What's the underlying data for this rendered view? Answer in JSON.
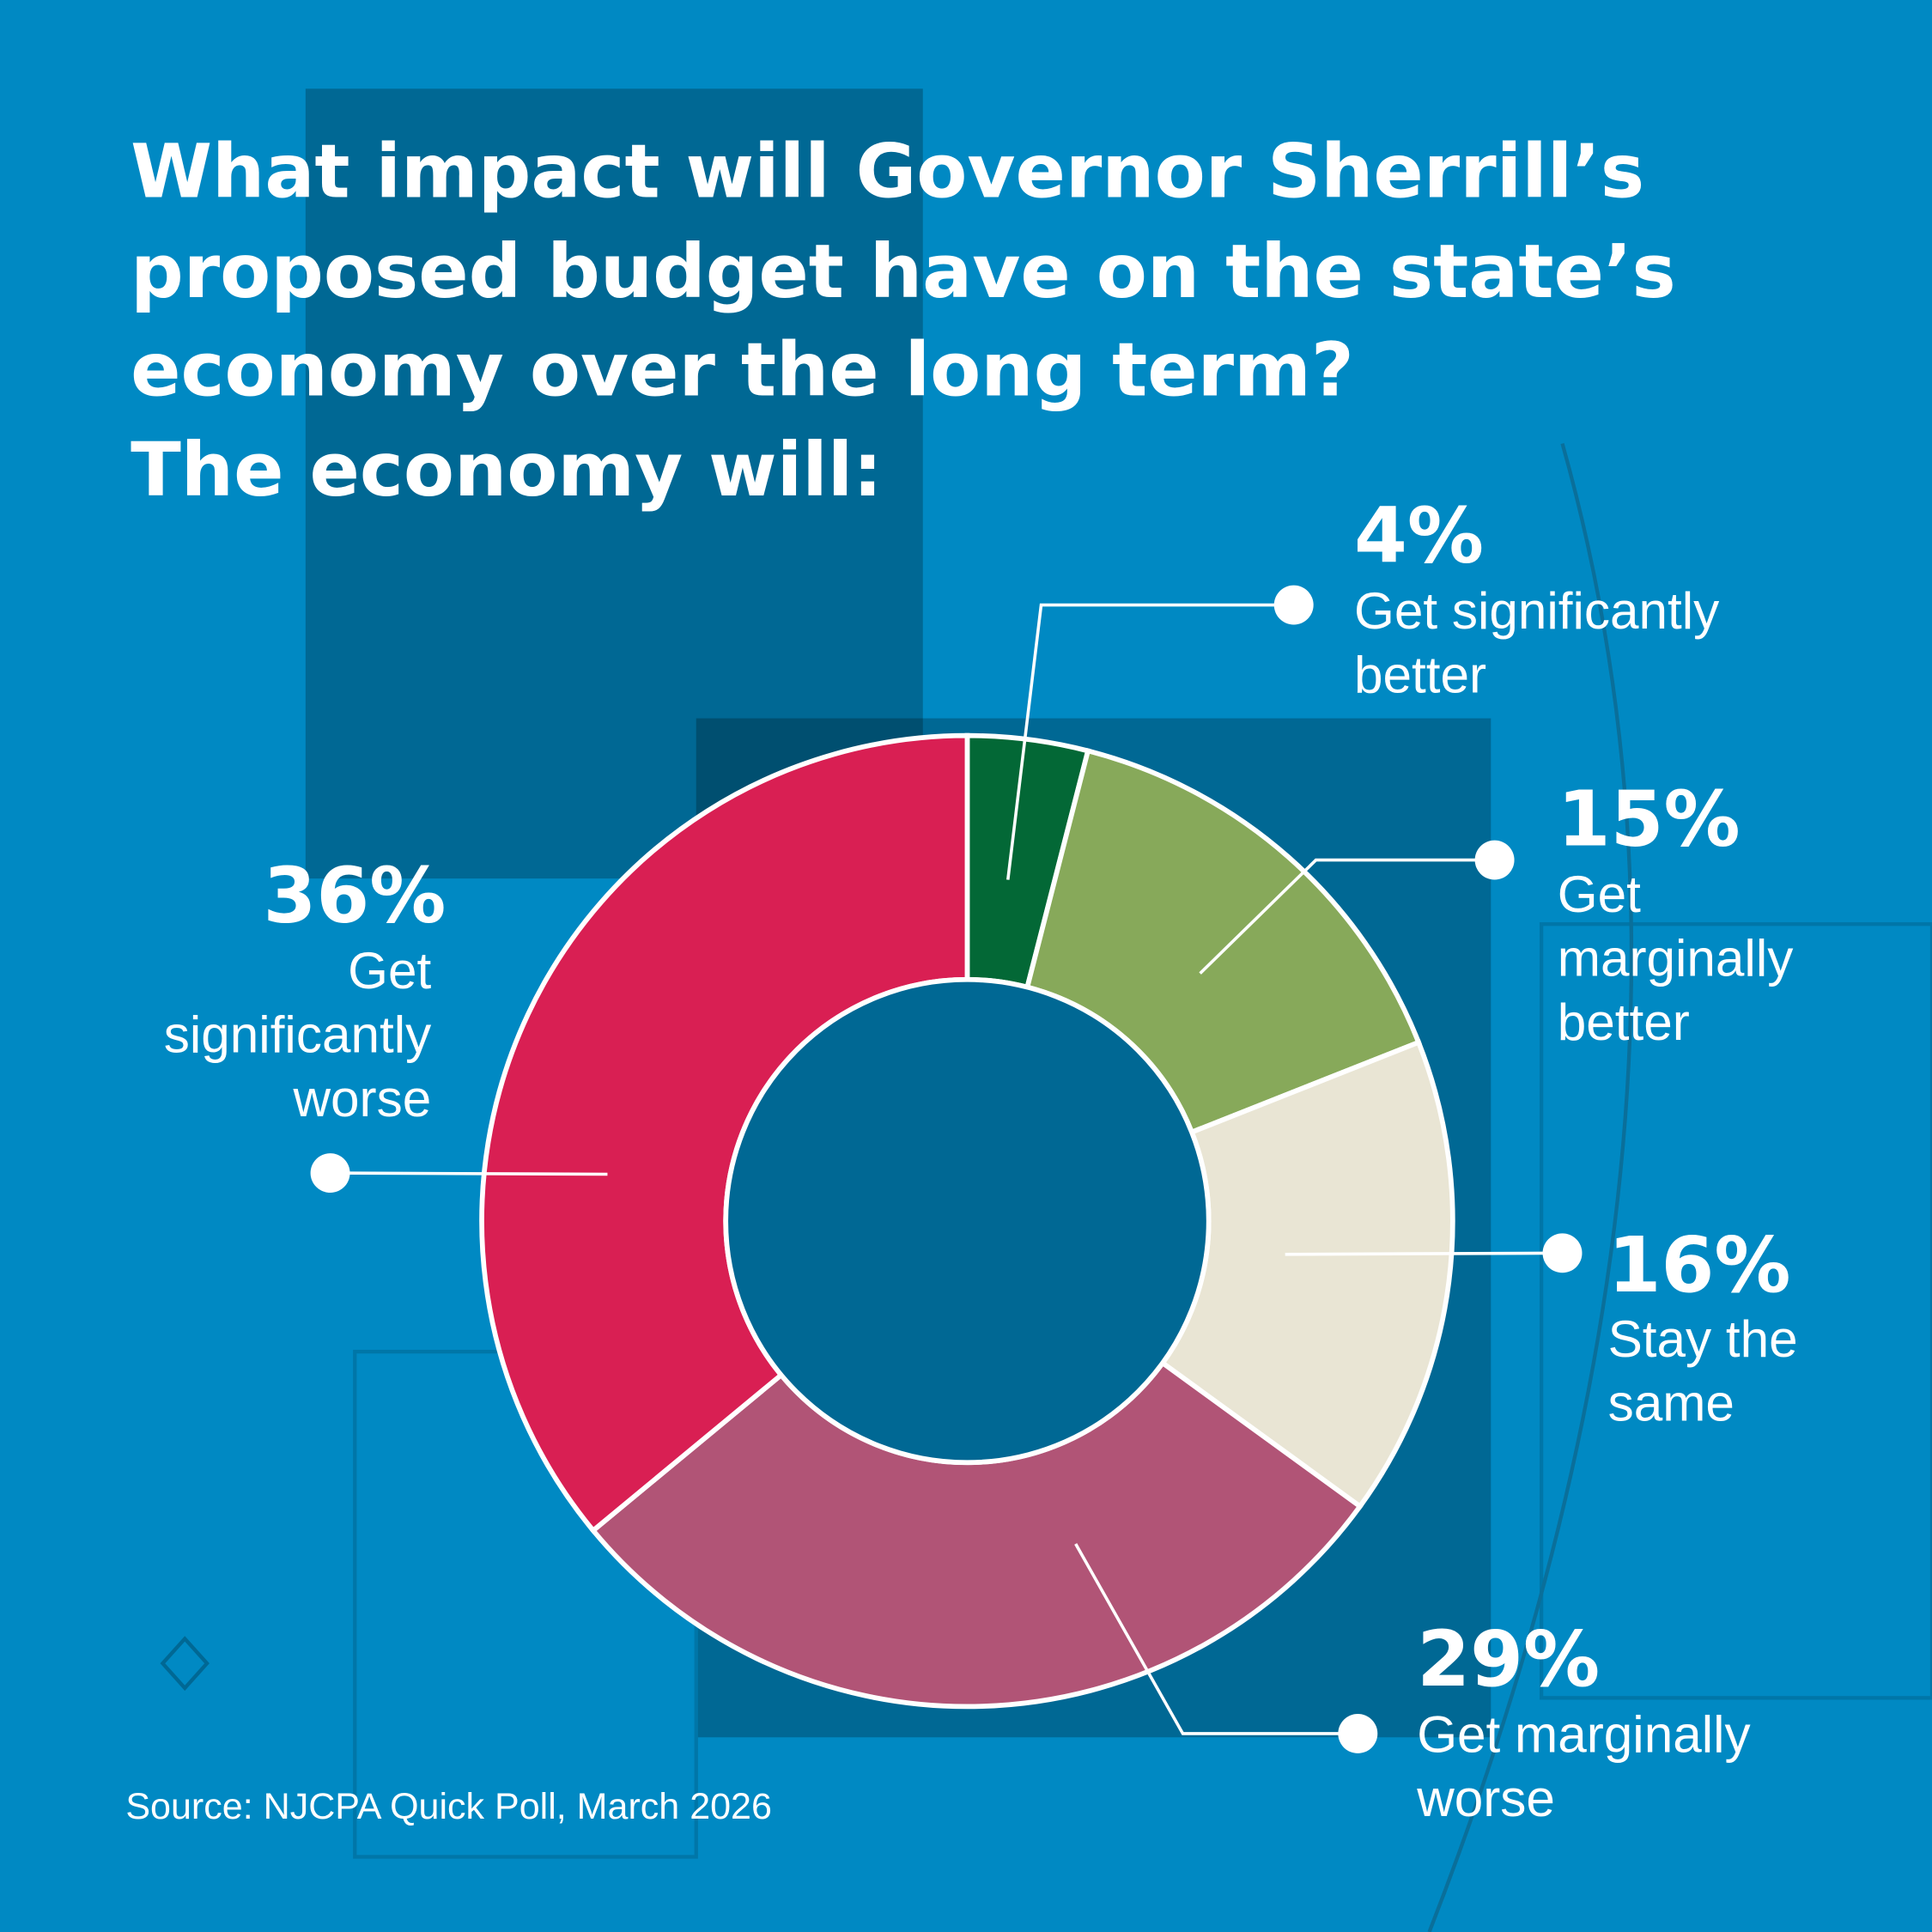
{
  "chart_data": {
    "type": "pie",
    "subtype": "donut",
    "title": [
      "What impact will Governor Sherrill’s",
      "proposed budget have on the state’s",
      "economy over the long term?",
      "The economy will:"
    ],
    "source": "Source: NJCPA Quick Poll, March 2026",
    "slices": [
      {
        "label": "Get significantly better",
        "lines": [
          "Get significantly",
          "better"
        ],
        "value": 4,
        "pct_label": "4%",
        "color": "#036836"
      },
      {
        "label": "Get marginally better",
        "lines": [
          "Get",
          "marginally",
          "better"
        ],
        "value": 15,
        "pct_label": "15%",
        "color": "#87a95a"
      },
      {
        "label": "Stay the same",
        "lines": [
          "Stay the",
          "same"
        ],
        "value": 16,
        "pct_label": "16%",
        "color": "#e9e5d4"
      },
      {
        "label": "Get marginally worse",
        "lines": [
          "Get marginally",
          "worse"
        ],
        "value": 29,
        "pct_label": "29%",
        "color": "#b15476"
      },
      {
        "label": "Get significantly worse",
        "lines": [
          "Get",
          "significantly",
          "worse"
        ],
        "value": 36,
        "pct_label": "36%",
        "color": "#d91f53"
      }
    ]
  },
  "colors": {
    "background": "#0089c3",
    "panel": "#006894",
    "hole": "#006894"
  }
}
